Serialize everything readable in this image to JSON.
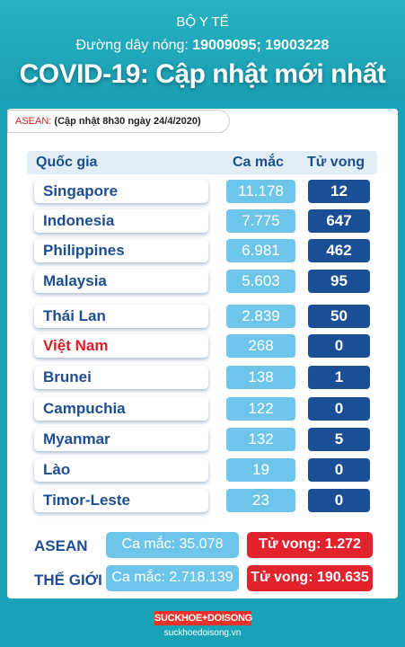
{
  "header": {
    "org": "BỘ Y TẾ",
    "hotline_label": "Đường dây nóng: ",
    "hotline_numbers": "19009095; 19003228",
    "title": "COVID-19: Cập nhật mới nhất"
  },
  "update": {
    "region": "ASEAN:",
    "text": "(Cập nhật 8h30 ngày 24/4/2020)"
  },
  "table": {
    "headers": {
      "country": "Quốc gia",
      "cases": "Ca mắc",
      "deaths": "Tử vong"
    },
    "rows": [
      {
        "country": "Singapore",
        "cases": "11.178",
        "deaths": "12"
      },
      {
        "country": "Indonesia",
        "cases": "7.775",
        "deaths": "647"
      },
      {
        "country": "Philippines",
        "cases": "6.981",
        "deaths": "462"
      },
      {
        "country": "Malaysia",
        "cases": "5.603",
        "deaths": "95"
      },
      {
        "country": "Thái Lan",
        "cases": "2.839",
        "deaths": "50"
      },
      {
        "country": "Việt Nam",
        "cases": "268",
        "deaths": "0"
      },
      {
        "country": "Brunei",
        "cases": "138",
        "deaths": "1"
      },
      {
        "country": "Campuchia",
        "cases": "122",
        "deaths": "0"
      },
      {
        "country": "Myanmar",
        "cases": "132",
        "deaths": "5"
      },
      {
        "country": "Lào",
        "cases": "19",
        "deaths": "0"
      },
      {
        "country": "Timor-Leste",
        "cases": "23",
        "deaths": "0"
      }
    ]
  },
  "summary": {
    "asean": {
      "label": "ASEAN",
      "cases": "Ca mắc: 35.078",
      "deaths": "Tử vong: 1.272"
    },
    "world": {
      "label": "THẾ GIỚI",
      "cases": "Ca mắc: 2.718.139",
      "deaths": "Tử vong: 190.635"
    }
  },
  "footer": {
    "logo": "SUCKHOE+DOISONG",
    "url": "suckhoedoisong.vn"
  },
  "colors": {
    "background": "#1aa3b6",
    "country_text": "#1e4e92",
    "highlight_country": "#d81f27",
    "cases_cell": "#6ec5ea",
    "deaths_cell": "#1b4f95",
    "world_deaths": "#e2232d"
  }
}
